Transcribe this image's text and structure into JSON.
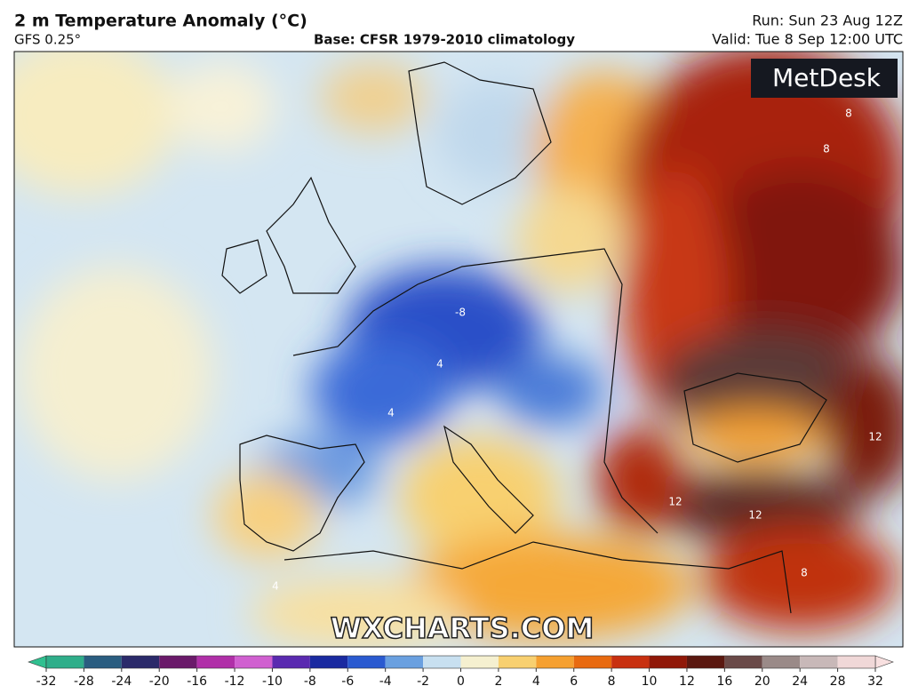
{
  "header": {
    "title": "2 m Temperature Anomaly (°C)",
    "model": "GFS 0.25°",
    "base": "Base: CFSR 1979-2010 climatology",
    "run": "Run: Sun 23 Aug 12Z",
    "valid": "Valid: Tue 8 Sep 12:00 UTC"
  },
  "logo": "MetDesk",
  "watermark": "WXCHARTS.COM",
  "contour_labels": [
    "-8",
    "8",
    "8",
    "8",
    "12",
    "12",
    "12",
    "4",
    "4",
    "4"
  ],
  "colorbar": {
    "ticks": [
      -32,
      -28,
      -24,
      -20,
      -16,
      -12,
      -10,
      -8,
      -6,
      -4,
      -2,
      0,
      2,
      4,
      6,
      8,
      10,
      12,
      16,
      20,
      24,
      28,
      32
    ],
    "colors": [
      "#2fae8a",
      "#2a5d80",
      "#2b2a6a",
      "#6a1a6a",
      "#b02fa8",
      "#d060d0",
      "#5a2ab0",
      "#1a2aa0",
      "#2a5ad0",
      "#6aa0e0",
      "#c8e0f0",
      "#f5f0d0",
      "#f8d070",
      "#f5a030",
      "#e86a10",
      "#c83010",
      "#901808",
      "#5a1810",
      "#6a4a48",
      "#9a8a88",
      "#c8b8b8",
      "#f0d8d8"
    ],
    "low_color": "#30c090",
    "high_color": "#f8e0e0"
  }
}
